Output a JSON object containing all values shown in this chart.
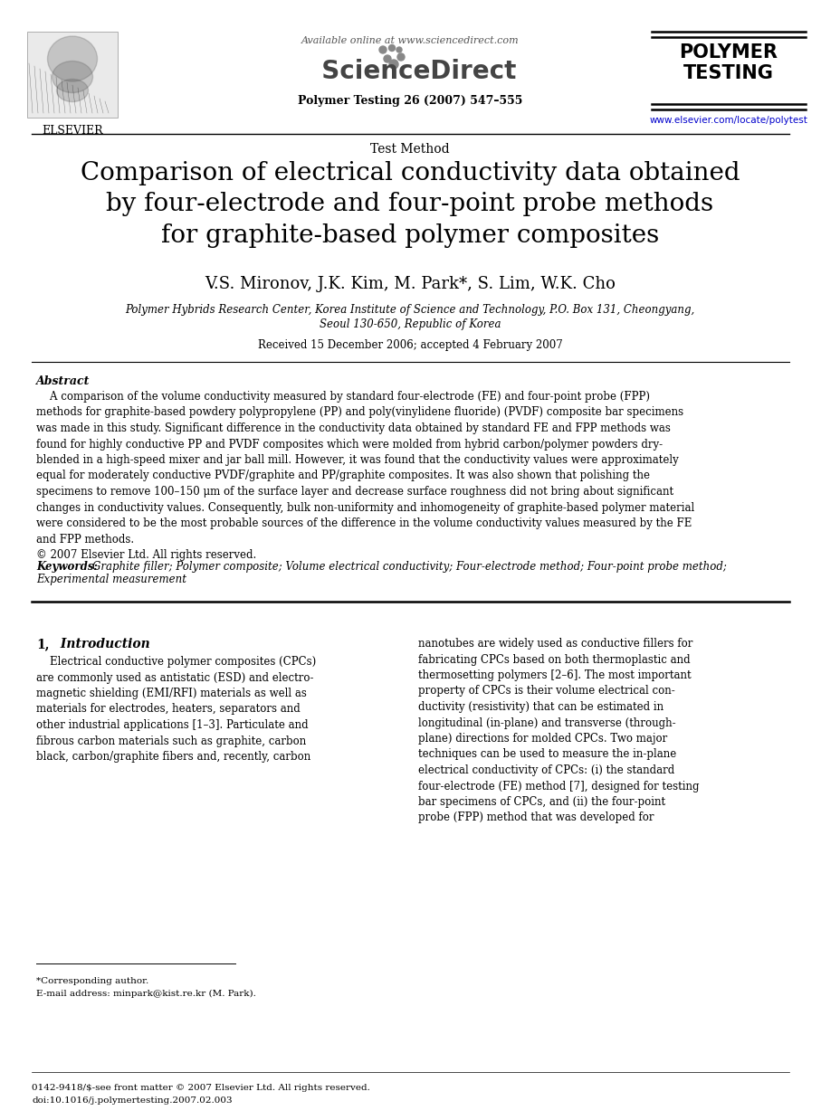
{
  "bg_color": "#ffffff",
  "header_available_online": "Available online at www.sciencedirect.com",
  "journal_info": "Polymer Testing 26 (2007) 547–555",
  "journal_title": "POLYMER\nTESTING",
  "journal_url": "www.elsevier.com/locate/polytest",
  "elsevier_label": "ELSEVIER",
  "section_label": "Test Method",
  "article_title": "Comparison of electrical conductivity data obtained\nby four-electrode and four-point probe methods\nfor graphite-based polymer composites",
  "authors": "V.S. Mironov, J.K. Kim, M. Park*, S. Lim, W.K. Cho",
  "affiliation1": "Polymer Hybrids Research Center, Korea Institute of Science and Technology, P.O. Box 131, Cheongyang,",
  "affiliation2": "Seoul 130-650, Republic of Korea",
  "received": "Received 15 December 2006; accepted 4 February 2007",
  "abstract_label": "Abstract",
  "abstract_text": "A comparison of the volume conductivity measured by standard four-electrode (FE) and four-point probe (FPP) methods for graphite-based powdery polypropylene (PP) and poly(vinylidene fluoride) (PVDF) composite bar specimens was made in this study. Significant difference in the conductivity data obtained by standard FE and FPP methods was found for highly conductive PP and PVDF composites which were molded from hybrid carbon/polymer powders dry-blended in a high-speed mixer and jar ball mill. However, it was found that the conductivity values were approximately equal for moderately conductive PVDF/graphite and PP/graphite composites. It was also shown that polishing the specimens to remove 100–150 μm of the surface layer and decrease surface roughness did not bring about significant changes in conductivity values. Consequently, bulk non-uniformity and inhomogeneity of graphite-based polymer material were considered to be the most probable sources of the difference in the volume conductivity values measured by the FE and FPP methods.\n© 2007 Elsevier Ltd. All rights reserved.",
  "keywords_label": "Keywords:",
  "keywords_text": "Graphite filler; Polymer composite; Volume electrical conductivity; Four-electrode method; Four-point probe method;\nExperimental measurement",
  "intro_section": "1,  Introduction",
  "intro_text_left": "    Electrical conductive polymer composites (CPCs)\nare commonly used as antistatic (ESD) and electro-\nmagnetic shielding (EMI/RFI) materials as well as\nmaterials for electrodes, heaters, separators and\nother industrial applications [1–3]. Particulate and\nfibrous carbon materials such as graphite, carbon\nblack, carbon/graphite fibers and, recently, carbon",
  "intro_text_right": "nanotubes are widely used as conductive fillers for\nfabricating CPCs based on both thermoplastic and\nthermosetting polymers [2–6]. The most important\nproperty of CPCs is their volume electrical con-\nductivity (resistivity) that can be estimated in\nlongitudinal (in-plane) and transverse (through-\nplane) directions for molded CPCs. Two major\ntechniques can be used to measure the in-plane\nelectrical conductivity of CPCs: (i) the standard\nfour-electrode (FE) method [7], designed for testing\nbar specimens of CPCs, and (ii) the four-point\nprobe (FPP) method that was developed for",
  "footnote_star": "*Corresponding author.",
  "footnote_email": "E-mail address: minpark@kist.re.kr (M. Park).",
  "footer_text1": "0142-9418/$-see front matter © 2007 Elsevier Ltd. All rights reserved.",
  "footer_text2": "doi:10.1016/j.polymertesting.2007.02.003"
}
